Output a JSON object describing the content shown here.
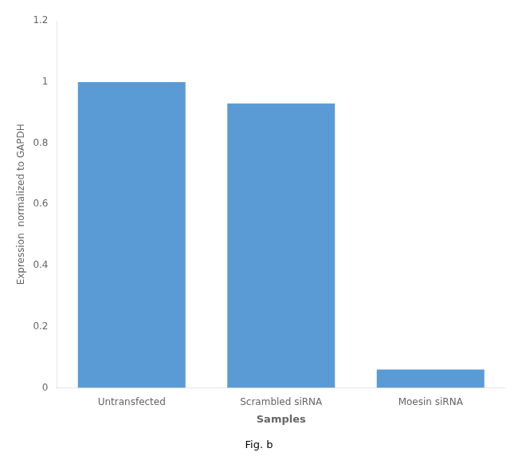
{
  "chart_data": {
    "type": "bar",
    "categories": [
      "Untransfected",
      "Scrambled siRNA",
      "Moesin siRNA"
    ],
    "values": [
      1.0,
      0.93,
      0.06
    ],
    "color": "#5B9BD5",
    "xlabel": "Samples",
    "ylabel": "Expression  normalized to GAPDH",
    "ylim": [
      0,
      1.2
    ],
    "yticks": [
      0,
      0.2,
      0.4,
      0.6,
      0.8,
      1,
      1.2
    ],
    "grid": false,
    "annotations": [
      "Fig. b"
    ]
  }
}
